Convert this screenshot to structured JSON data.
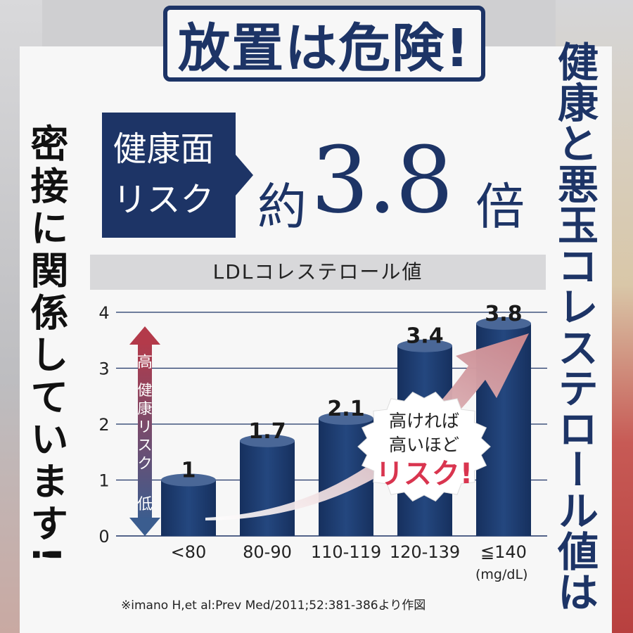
{
  "headline": "放置は危険!",
  "left_vertical_text": "密接に関係しています!",
  "right_vertical_text": "健康と悪玉コレステロール値は",
  "risk_box": {
    "line1": "健康面",
    "line2": "リスク"
  },
  "risk_multiplier": {
    "prefix": "約",
    "value": "3.8",
    "suffix": "倍"
  },
  "colors": {
    "navy": "#1d3466",
    "bar": "#1f3d70",
    "arrow_pink": "#c8858c",
    "callout_red": "#d9354f"
  },
  "chart_data": {
    "type": "bar",
    "title": "LDLコレステロール値",
    "categories": [
      "<80",
      "80-90",
      "110-119",
      "120-139",
      "≦140"
    ],
    "values": [
      1,
      1.7,
      2.1,
      3.4,
      3.8
    ],
    "value_labels": [
      "1",
      "1.7",
      "2.1",
      "3.4",
      "3.8"
    ],
    "yticks": [
      "0",
      "1",
      "2",
      "3",
      "4"
    ],
    "ylim": [
      0,
      4
    ],
    "grid": true,
    "x_unit": "(mg/dL)",
    "axis_arrow": {
      "top": "高",
      "middle": "健康リスク",
      "bottom": "低"
    },
    "callout": {
      "line1": "高ければ",
      "line2": "高いほど",
      "emphasis": "リスク!"
    }
  },
  "citation": "※imano H,et al:Prev Med/2011;52:381-386より作図"
}
